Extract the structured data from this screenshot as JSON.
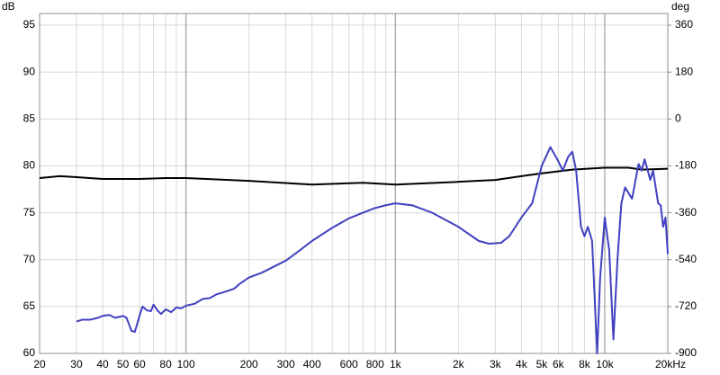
{
  "chart_data": {
    "type": "line",
    "y_unit": "dB",
    "y2_unit": "deg",
    "xscale": "log",
    "grid": true,
    "xlim": [
      20,
      20000
    ],
    "ylim": [
      60,
      96.25
    ],
    "y2lim": [
      -900,
      405
    ],
    "xticks": [
      20,
      30,
      40,
      50,
      60,
      80,
      100,
      200,
      300,
      400,
      600,
      800,
      {
        "value": 1000,
        "label": "1k"
      },
      {
        "value": 2000,
        "label": "2k"
      },
      {
        "value": 3000,
        "label": "3k"
      },
      {
        "value": 4000,
        "label": "4k"
      },
      {
        "value": 5000,
        "label": "5k"
      },
      {
        "value": 6000,
        "label": "6k"
      },
      {
        "value": 8000,
        "label": "8k"
      },
      {
        "value": 10000,
        "label": "10k"
      },
      {
        "value": 20000,
        "label": "20kHz"
      }
    ],
    "x_minor_gridlines": [
      70,
      90,
      500,
      700,
      900,
      7000,
      9000
    ],
    "x_major_gridlines": [
      100,
      1000,
      10000
    ],
    "yticks": [
      60,
      65,
      70,
      75,
      80,
      85,
      90,
      95
    ],
    "y2ticks": [
      -900,
      -720,
      -540,
      -360,
      -180,
      0,
      180,
      360
    ],
    "series": [
      {
        "color": "#4040c0",
        "x": [
          30,
          32,
          35,
          38,
          40,
          43,
          46,
          50,
          52,
          55,
          57,
          60,
          62,
          65,
          68,
          70,
          73,
          76,
          80,
          85,
          90,
          95,
          100,
          110,
          120,
          130,
          140,
          150,
          170,
          180,
          200,
          230,
          260,
          300,
          350,
          400,
          500,
          600,
          700,
          800,
          900,
          1000,
          1200,
          1500,
          2000,
          2500,
          2800,
          3200,
          3500,
          4000,
          4500,
          5000,
          5500,
          6000,
          6300,
          6700,
          7000,
          7300,
          7700,
          8000,
          8300,
          8700,
          9200,
          9500,
          10000,
          10500,
          11000,
          11500,
          12000,
          12500,
          13500,
          14500,
          15000,
          15500,
          16500,
          17000,
          18000,
          18500,
          19000,
          19500,
          20000
        ],
        "values": [
          63.4,
          63.6,
          63.6,
          63.8,
          64.0,
          64.1,
          63.8,
          64.0,
          63.8,
          62.4,
          62.3,
          64.0,
          65.0,
          64.6,
          64.5,
          65.2,
          64.6,
          64.2,
          64.7,
          64.4,
          64.9,
          64.8,
          65.1,
          65.3,
          65.8,
          65.9,
          66.3,
          66.5,
          66.9,
          67.4,
          68.1,
          68.6,
          69.2,
          69.9,
          71.0,
          72.0,
          73.4,
          74.4,
          75.0,
          75.5,
          75.8,
          76.0,
          75.8,
          75.0,
          73.5,
          72.0,
          71.7,
          71.8,
          72.5,
          74.5,
          76.0,
          80.0,
          82.0,
          80.5,
          79.5,
          81.0,
          81.5,
          79.5,
          73.5,
          72.5,
          73.5,
          72.0,
          60.0,
          68.0,
          74.5,
          71.0,
          61.5,
          70.0,
          76.0,
          77.7,
          76.5,
          80.2,
          79.5,
          80.7,
          78.5,
          79.5,
          76.0,
          75.8,
          73.5,
          74.5,
          70.6
        ]
      },
      {
        "color": "#000000",
        "x": [
          20,
          25,
          30,
          40,
          60,
          80,
          100,
          200,
          400,
          700,
          1000,
          2000,
          3000,
          4000,
          5000,
          7000,
          10000,
          13000,
          15000,
          20000
        ],
        "values": [
          78.7,
          78.9,
          78.8,
          78.6,
          78.6,
          78.7,
          78.7,
          78.4,
          78.0,
          78.2,
          78.0,
          78.3,
          78.5,
          78.9,
          79.2,
          79.6,
          79.8,
          79.8,
          79.6,
          79.7
        ]
      }
    ]
  }
}
